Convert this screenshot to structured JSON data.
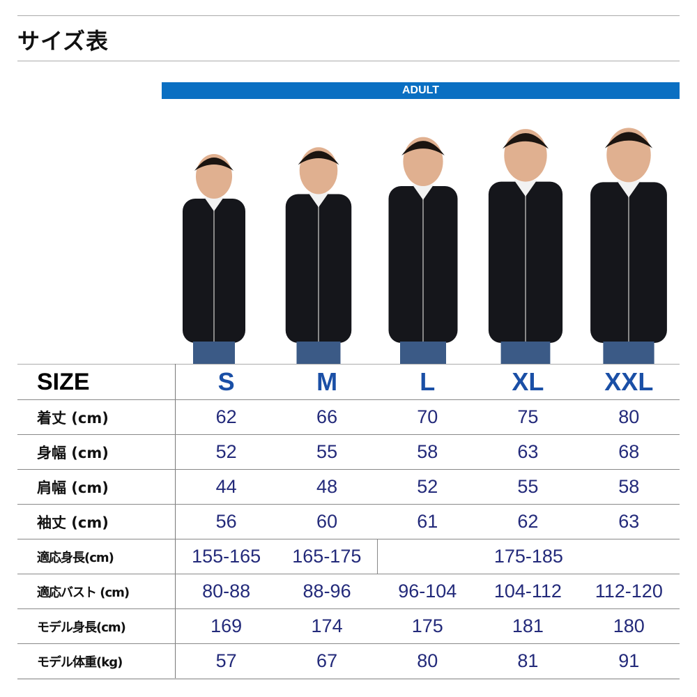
{
  "title": "サイズ表",
  "banner": "ADULT",
  "colors": {
    "banner": "#0a6fc2",
    "size_header": "#1a4fa6",
    "value_text": "#232a7a"
  },
  "photo": "five models wearing black zip hoodies, sizes S to XXL",
  "table": {
    "header_label": "SIZE",
    "sizes": [
      "S",
      "M",
      "L",
      "XL",
      "XXL"
    ],
    "rows": [
      {
        "label": "着丈 (cm)",
        "values": [
          "62",
          "66",
          "70",
          "75",
          "80"
        ]
      },
      {
        "label": "身幅 (cm)",
        "values": [
          "52",
          "55",
          "58",
          "63",
          "68"
        ]
      },
      {
        "label": "肩幅 (cm)",
        "values": [
          "44",
          "48",
          "52",
          "55",
          "58"
        ]
      },
      {
        "label": "袖丈 (cm)",
        "values": [
          "56",
          "60",
          "61",
          "62",
          "63"
        ]
      },
      {
        "label": "適応身長(cm)",
        "values": [
          "155-165",
          "165-175",
          "175-185"
        ]
      },
      {
        "label": "適応バスト (cm)",
        "values": [
          "80-88",
          "88-96",
          "96-104",
          "104-112",
          "112-120"
        ]
      },
      {
        "label": "モデル身長(cm)",
        "values": [
          "169",
          "174",
          "175",
          "181",
          "180"
        ]
      },
      {
        "label": "モデル体重(kg)",
        "values": [
          "57",
          "67",
          "80",
          "81",
          "91"
        ]
      }
    ]
  }
}
